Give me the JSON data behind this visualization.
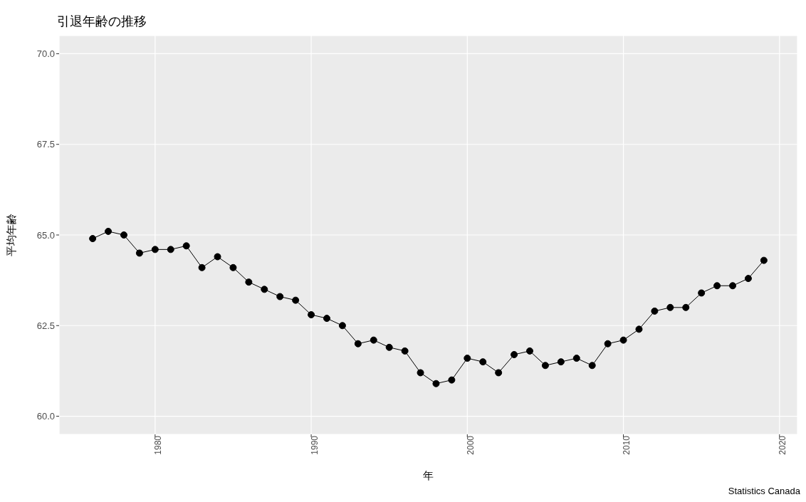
{
  "chart_data": {
    "type": "line",
    "title": "引退年齢の推移",
    "xlabel": "年",
    "ylabel": "平均年齢",
    "annotations": [
      "Statistics Canada"
    ],
    "x": [
      1976,
      1977,
      1978,
      1979,
      1980,
      1981,
      1982,
      1983,
      1984,
      1985,
      1986,
      1987,
      1988,
      1989,
      1990,
      1991,
      1992,
      1993,
      1994,
      1995,
      1996,
      1997,
      1998,
      1999,
      2000,
      2001,
      2002,
      2003,
      2004,
      2005,
      2006,
      2007,
      2008,
      2009,
      2010,
      2011,
      2012,
      2013,
      2014,
      2015,
      2016,
      2017,
      2018,
      2019
    ],
    "series": [
      {
        "color": "#000000",
        "values": [
          64.9,
          65.1,
          65.0,
          64.5,
          64.6,
          64.6,
          64.7,
          64.1,
          64.4,
          64.1,
          63.7,
          63.5,
          63.3,
          63.2,
          62.8,
          62.7,
          62.5,
          62.0,
          62.1,
          61.9,
          61.8,
          61.2,
          60.9,
          61.0,
          61.6,
          61.5,
          61.2,
          61.7,
          61.8,
          61.4,
          61.5,
          61.6,
          61.4,
          62.0,
          62.1,
          62.4,
          62.9,
          63.0,
          63.0,
          63.4,
          63.6,
          63.6,
          63.8,
          64.3
        ]
      }
    ],
    "xlim": [
      1973.85,
      2021.15
    ],
    "xticks": [
      1980,
      1990,
      2000,
      2010,
      2020
    ],
    "ylim": [
      59.5,
      70.5
    ],
    "yticks": [
      {
        "value": 60,
        "label": "60.0"
      },
      {
        "value": 62.5,
        "label": "62.5"
      },
      {
        "value": 65,
        "label": "65.0"
      },
      {
        "value": 67.5,
        "label": "67.5"
      },
      {
        "value": 70,
        "label": "70.0"
      }
    ],
    "grid": true,
    "marker": "circle",
    "line_style": "solid",
    "legend": false
  }
}
